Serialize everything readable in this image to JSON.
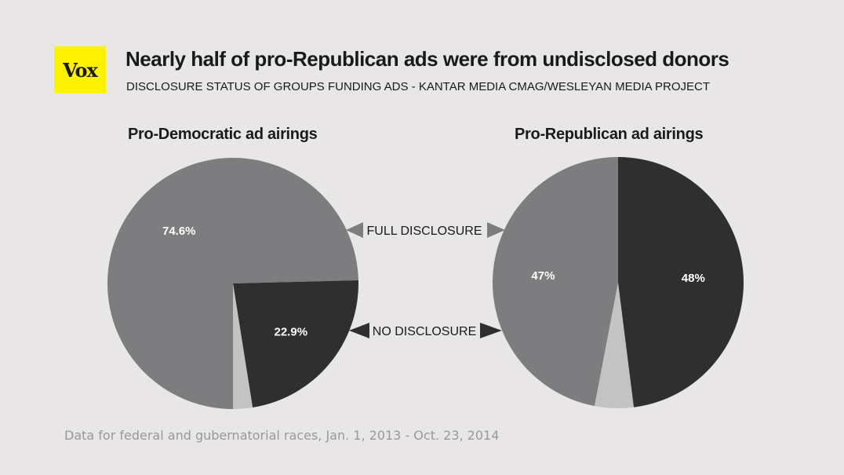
{
  "header": {
    "logo_text": "Vox",
    "title": "Nearly half of pro-Republican ads were from undisclosed donors",
    "subtitle": "DISCLOSURE STATUS OF GROUPS FUNDING ADS - KANTAR MEDIA CMAG/WESLEYAN MEDIA PROJECT"
  },
  "legend": {
    "full_label": "FULL DISCLOSURE",
    "no_label": "NO DISCLOSURE"
  },
  "footer": "Data for federal and gubernatorial races, Jan. 1, 2013 - Oct. 23, 2014",
  "colors": {
    "full": "#7d7d80",
    "none": "#2f2f2f",
    "other": "#c3c3c3",
    "label_text": "#ffffff",
    "background": "#e8e6e6"
  },
  "chart_data": [
    {
      "type": "pie",
      "title": "Pro-Democratic ad airings",
      "slices": [
        {
          "name": "FULL DISCLOSURE",
          "value": 74.6,
          "label": "74.6%"
        },
        {
          "name": "NO DISCLOSURE",
          "value": 22.9,
          "label": "22.9%"
        },
        {
          "name": "",
          "value": 2.5,
          "label": ""
        }
      ]
    },
    {
      "type": "pie",
      "title": "Pro-Republican ad airings",
      "slices": [
        {
          "name": "FULL DISCLOSURE",
          "value": 47,
          "label": "47%"
        },
        {
          "name": "",
          "value": 5,
          "label": ""
        },
        {
          "name": "NO DISCLOSURE",
          "value": 48,
          "label": "48%"
        }
      ]
    }
  ]
}
